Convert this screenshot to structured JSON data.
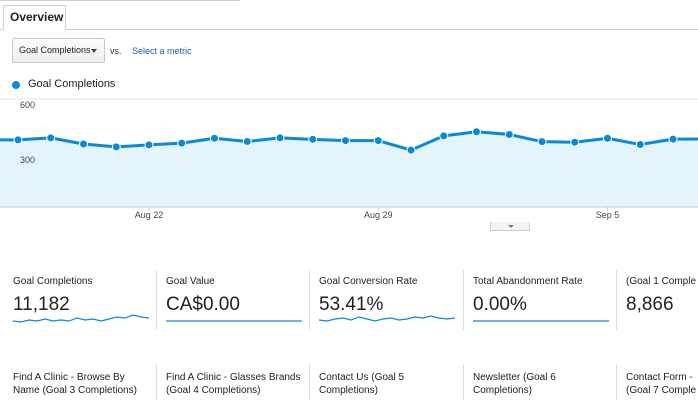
{
  "tabs": [
    {
      "label": "Overview"
    }
  ],
  "metric_selector": {
    "selected": "Goal Completions",
    "vs_label": "vs.",
    "select_metric_link": "Select a metric"
  },
  "legend": {
    "series_name": "Goal Completions",
    "color": "#0a8ad6"
  },
  "chart_data": {
    "type": "area",
    "y_ticks": [
      "600",
      "300"
    ],
    "ylim": [
      0,
      600
    ],
    "x_tick_labels": [
      "Aug 22",
      "Aug 29",
      "Sep 5"
    ],
    "series": [
      {
        "name": "Goal Completions",
        "values": [
          373,
          384,
          350,
          334,
          345,
          355,
          382,
          364,
          384,
          376,
          369,
          369,
          316,
          395,
          418,
          403,
          363,
          360,
          382,
          347,
          377,
          378
        ]
      }
    ],
    "grid": "horizontal",
    "colors": {
      "line": "#0a8ad6",
      "fill": "#e5f3fa"
    }
  },
  "scorecards": [
    {
      "label": "Goal Completions",
      "value": "11,182"
    },
    {
      "label": "Goal Value",
      "value": "CA$0.00"
    },
    {
      "label": "Goal Conversion Rate",
      "value": "53.41%"
    },
    {
      "label": "Total Abandonment Rate",
      "value": "0.00%"
    },
    {
      "label": "(Goal 1 Comple",
      "value": "8,866"
    }
  ],
  "goal_tiles": [
    {
      "line1": "Find A Clinic - Browse By",
      "line2": "Name (Goal 3 Completions)"
    },
    {
      "line1": "Find A Clinic - Glasses Brands",
      "line2": "(Goal 4 Completions)"
    },
    {
      "line1": "Contact Us (Goal 5",
      "line2": "Completions)"
    },
    {
      "line1": "Newsletter (Goal 6",
      "line2": "Completions)"
    },
    {
      "line1": "Contact Form -",
      "line2": "(Goal 7 Comple"
    }
  ]
}
